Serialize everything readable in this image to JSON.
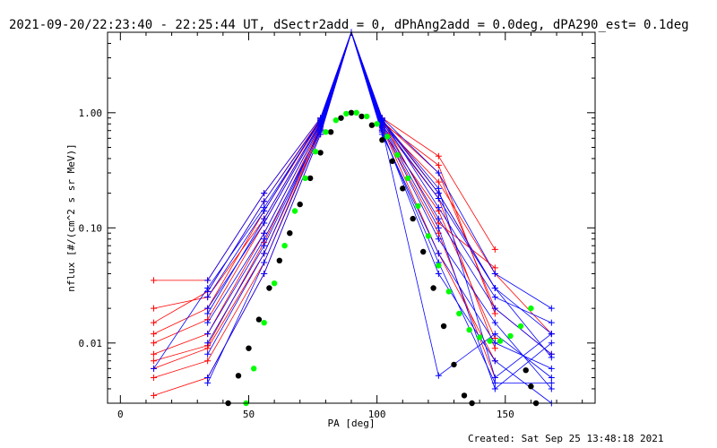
{
  "chart_data": {
    "type": "line",
    "title": "2021-09-20/22:23:40 - 22:25:44 UT, dSectr2add = 0, dPhAng2add = 0.0deg, dPA290_est=  0.1deg",
    "xlabel": "PA [deg]",
    "ylabel": "nflux [#/(cm^2 s sr MeV)]",
    "xlim": [
      -5,
      185
    ],
    "ylim": [
      0.003,
      5
    ],
    "yscale": "log",
    "x_ticks": [
      0,
      50,
      100,
      150
    ],
    "y_ticks": [
      {
        "value": 0.01,
        "label": "0.01"
      },
      {
        "value": 0.1,
        "label": "0.10"
      },
      {
        "value": 1,
        "label": "1.00"
      }
    ],
    "footer": "Created: Sat Sep 25 13:48:18 2021",
    "colors": {
      "red": "#ff0000",
      "blue": "#0000ff",
      "black": "#000000",
      "green": "#00ff00"
    },
    "series": [
      {
        "color": "red",
        "style": "line-plus",
        "x": [
          13,
          34,
          56,
          78,
          90,
          102,
          124,
          146,
          168
        ],
        "y": [
          0.012,
          0.02,
          0.14,
          0.85,
          5,
          0.8,
          0.25,
          0.04,
          0.012
        ]
      },
      {
        "color": "red",
        "style": "line-plus",
        "x": [
          13,
          34,
          56,
          78,
          90,
          102,
          124,
          146,
          168
        ],
        "y": [
          0.008,
          0.012,
          0.09,
          0.78,
          5,
          0.85,
          0.3,
          0.02,
          0.008
        ]
      },
      {
        "color": "red",
        "style": "line-plus",
        "x": [
          13,
          34,
          56,
          78,
          90,
          102,
          124,
          146
        ],
        "y": [
          0.035,
          0.035,
          0.2,
          0.9,
          5,
          0.9,
          0.42,
          0.065
        ]
      },
      {
        "color": "red",
        "style": "line-plus",
        "x": [
          13,
          34,
          56,
          78,
          90,
          102,
          124,
          146
        ],
        "y": [
          0.006,
          0.009,
          0.06,
          0.7,
          5,
          0.7,
          0.14,
          0.011
        ]
      },
      {
        "color": "red",
        "style": "line-plus",
        "x": [
          13,
          34,
          56,
          78,
          90,
          102,
          124,
          146
        ],
        "y": [
          0.0035,
          0.005,
          0.04,
          0.65,
          5,
          0.75,
          0.09,
          0.005
        ]
      },
      {
        "color": "red",
        "style": "line-plus",
        "x": [
          13,
          34,
          56,
          78,
          90,
          102,
          124,
          146
        ],
        "y": [
          0.015,
          0.028,
          0.17,
          0.88,
          5,
          0.88,
          0.2,
          0.03
        ]
      },
      {
        "color": "red",
        "style": "line-plus",
        "x": [
          13,
          34,
          56,
          78,
          90,
          102,
          124,
          146
        ],
        "y": [
          0.01,
          0.016,
          0.11,
          0.8,
          5,
          0.82,
          0.35,
          0.018
        ]
      },
      {
        "color": "red",
        "style": "line-plus",
        "x": [
          13,
          34,
          56,
          78,
          90,
          102,
          124,
          146
        ],
        "y": [
          0.005,
          0.007,
          0.05,
          0.72,
          5,
          0.78,
          0.18,
          0.009
        ]
      },
      {
        "color": "red",
        "style": "line-plus",
        "x": [
          13,
          34,
          56,
          78,
          90,
          102,
          124,
          146
        ],
        "y": [
          0.02,
          0.025,
          0.12,
          0.83,
          5,
          0.86,
          0.11,
          0.045
        ]
      },
      {
        "color": "red",
        "style": "line-plus",
        "x": [
          13,
          34,
          56,
          78,
          90,
          102,
          124,
          146
        ],
        "y": [
          0.007,
          0.0095,
          0.075,
          0.76,
          5,
          0.74,
          0.06,
          0.007
        ]
      },
      {
        "color": "blue",
        "style": "line-plus",
        "x": [
          13,
          34,
          56,
          78,
          90,
          102,
          124,
          146,
          168
        ],
        "y": [
          0.006,
          0.03,
          0.15,
          0.85,
          5,
          0.85,
          0.2,
          0.03,
          0.012
        ]
      },
      {
        "color": "blue",
        "style": "line-plus",
        "x": [
          34,
          56,
          78,
          90,
          102,
          124,
          146,
          168
        ],
        "y": [
          0.02,
          0.11,
          0.8,
          5,
          0.8,
          0.12,
          0.02,
          0.008
        ]
      },
      {
        "color": "blue",
        "style": "line-plus",
        "x": [
          34,
          56,
          78,
          90,
          102,
          124,
          146,
          168
        ],
        "y": [
          0.008,
          0.06,
          0.75,
          5,
          0.75,
          0.08,
          0.015,
          0.004
        ]
      },
      {
        "color": "blue",
        "style": "line-plus",
        "x": [
          34,
          56,
          78,
          90,
          102,
          124,
          146,
          168
        ],
        "y": [
          0.012,
          0.08,
          0.7,
          5,
          0.65,
          0.06,
          0.01,
          0.006
        ]
      },
      {
        "color": "blue",
        "style": "line-plus",
        "x": [
          34,
          56,
          78,
          90,
          102,
          124,
          146,
          168
        ],
        "y": [
          0.035,
          0.2,
          0.9,
          5,
          0.9,
          0.3,
          0.04,
          0.02
        ]
      },
      {
        "color": "blue",
        "style": "line-plus",
        "x": [
          34,
          56,
          78,
          90,
          102,
          124,
          146,
          168
        ],
        "y": [
          0.005,
          0.04,
          0.65,
          5,
          0.7,
          0.04,
          0.007,
          0.003
        ]
      },
      {
        "color": "blue",
        "style": "line-plus",
        "x": [
          34,
          56,
          78,
          90,
          102,
          124,
          146,
          168
        ],
        "y": [
          0.025,
          0.14,
          0.88,
          5,
          0.88,
          0.15,
          0.025,
          0.015
        ]
      },
      {
        "color": "blue",
        "style": "line-plus",
        "x": [
          34,
          56,
          78,
          90,
          102,
          124,
          146,
          168
        ],
        "y": [
          0.015,
          0.09,
          0.78,
          5,
          0.78,
          0.1,
          0.004,
          0.01
        ]
      },
      {
        "color": "blue",
        "style": "line-plus",
        "x": [
          34,
          56,
          78,
          90,
          102,
          124,
          146,
          168
        ],
        "y": [
          0.01,
          0.07,
          0.72,
          5,
          0.72,
          0.0052,
          0.012,
          0.005
        ]
      },
      {
        "color": "blue",
        "style": "line-plus",
        "x": [
          34,
          56,
          78,
          90,
          102,
          124,
          146,
          168
        ],
        "y": [
          0.028,
          0.17,
          0.86,
          5,
          0.86,
          0.22,
          0.005,
          0.012
        ]
      },
      {
        "color": "blue",
        "style": "line-plus",
        "x": [
          34,
          56,
          78,
          90,
          102,
          124,
          146,
          168
        ],
        "y": [
          0.0045,
          0.05,
          0.68,
          5,
          0.68,
          0.05,
          0.0045,
          0.0045
        ]
      },
      {
        "color": "blue",
        "style": "line-plus",
        "x": [
          34,
          56,
          78,
          90,
          102,
          124,
          146,
          168
        ],
        "y": [
          0.018,
          0.12,
          0.82,
          5,
          0.82,
          0.18,
          0.03,
          0.0075
        ]
      },
      {
        "color": "black",
        "style": "dots",
        "x": [
          42,
          46,
          50,
          54,
          58,
          62,
          66,
          70,
          74,
          78,
          82,
          86,
          90,
          94,
          98,
          102,
          106,
          110,
          114,
          118,
          122,
          126,
          130,
          134,
          137
        ],
        "y": [
          0.003,
          0.0052,
          0.009,
          0.016,
          0.03,
          0.052,
          0.09,
          0.16,
          0.27,
          0.45,
          0.68,
          0.9,
          1.0,
          0.93,
          0.78,
          0.58,
          0.38,
          0.22,
          0.12,
          0.062,
          0.03,
          0.014,
          0.0065,
          0.0035,
          0.003
        ]
      },
      {
        "color": "black",
        "style": "dots",
        "x": [
          158,
          160,
          162
        ],
        "y": [
          0.0058,
          0.0042,
          0.003
        ]
      },
      {
        "color": "green",
        "style": "dots",
        "x": [
          49,
          52,
          56,
          60,
          64,
          68,
          72,
          76,
          80,
          84,
          88,
          92,
          96,
          100,
          104,
          108,
          112,
          116,
          120,
          124,
          128,
          132,
          136,
          140,
          144,
          148,
          152,
          156,
          160
        ],
        "y": [
          0.003,
          0.006,
          0.015,
          0.033,
          0.07,
          0.14,
          0.27,
          0.46,
          0.68,
          0.86,
          0.98,
          1.0,
          0.93,
          0.8,
          0.62,
          0.43,
          0.27,
          0.155,
          0.085,
          0.047,
          0.028,
          0.018,
          0.013,
          0.0112,
          0.0104,
          0.0104,
          0.0115,
          0.014,
          0.02
        ]
      }
    ]
  }
}
